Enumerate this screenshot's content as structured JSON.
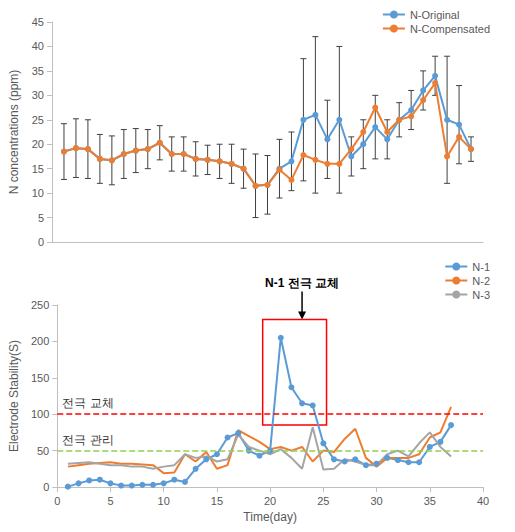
{
  "chart_data": [
    {
      "type": "line",
      "ylabel": "N concentrations (ppm)",
      "x": [
        1,
        2,
        3,
        4,
        5,
        6,
        7,
        8,
        9,
        10,
        11,
        12,
        13,
        14,
        15,
        16,
        17,
        18,
        19,
        20,
        21,
        22,
        23,
        24,
        25,
        26,
        27,
        28,
        29,
        30,
        31,
        32,
        33,
        34,
        35
      ],
      "series": [
        {
          "name": "N-Original",
          "color": "#5b9bd5",
          "marker": "circle",
          "values": [
            18.5,
            19.2,
            19.0,
            17.0,
            16.7,
            18.0,
            18.7,
            19.0,
            20.3,
            18.0,
            18.0,
            17.0,
            16.8,
            16.5,
            16.0,
            15.0,
            11.5,
            11.7,
            15.0,
            16.5,
            25.0,
            26.0,
            21.0,
            25.0,
            17.5,
            20.0,
            23.5,
            21.0,
            25.0,
            27.0,
            31.0,
            34.0,
            25.0,
            24.0,
            19.0
          ],
          "errors": [
            5.7,
            6.0,
            6.0,
            5.0,
            5.0,
            5.0,
            4.5,
            4.0,
            3.5,
            3.5,
            3.5,
            3.5,
            3.0,
            3.5,
            4.0,
            4.0,
            6.5,
            6.0,
            6.0,
            6.0,
            12.5,
            16.0,
            8.0,
            15.0,
            4.0,
            5.0,
            6.5,
            4.0,
            3.5,
            4.0,
            4.0,
            4.0,
            13.0,
            8.0,
            2.5
          ]
        },
        {
          "name": "N-Compensated",
          "color": "#ed7d31",
          "marker": "circle",
          "values": [
            18.5,
            19.2,
            19.0,
            17.0,
            16.7,
            18.0,
            18.7,
            19.0,
            20.3,
            18.0,
            18.0,
            17.0,
            16.8,
            16.5,
            16.0,
            15.0,
            11.5,
            11.7,
            14.8,
            12.7,
            17.8,
            16.8,
            16.0,
            16.0,
            19.0,
            22.5,
            27.5,
            22.5,
            25.0,
            25.7,
            29.0,
            32.5,
            17.5,
            21.5,
            19.0
          ]
        }
      ],
      "xlim": [
        0,
        36
      ],
      "ylim": [
        0,
        45
      ],
      "yticks": [
        0,
        5,
        10,
        15,
        20,
        25,
        30,
        35,
        40,
        45
      ],
      "grid": false,
      "legend": "upper right",
      "tick_labels": "y"
    },
    {
      "type": "line",
      "xlabel": "Time(day)",
      "ylabel": "Electrode Stability(S)",
      "x": [
        1,
        2,
        3,
        4,
        5,
        6,
        7,
        8,
        9,
        10,
        11,
        12,
        13,
        14,
        15,
        16,
        17,
        18,
        19,
        20,
        21,
        22,
        23,
        24,
        25,
        26,
        27,
        28,
        29,
        30,
        31,
        32,
        33,
        34,
        35,
        36,
        37
      ],
      "series": [
        {
          "name": "N-1",
          "color": "#5b9bd5",
          "marker": "circle",
          "values": [
            0.5,
            5,
            9,
            10,
            5,
            2,
            2,
            3,
            3,
            5,
            10,
            7,
            25,
            38,
            45,
            68,
            74,
            50,
            43,
            50,
            205,
            137,
            115,
            112,
            60,
            38,
            35,
            38,
            30,
            32,
            40,
            37,
            34,
            34,
            55,
            62,
            85
          ]
        },
        {
          "name": "N-2",
          "color": "#ed7d31",
          "marker": "none",
          "values": [
            28,
            30,
            32,
            33,
            34,
            32,
            32,
            31,
            30,
            19,
            20,
            45,
            35,
            48,
            25,
            30,
            78,
            70,
            62,
            52,
            55,
            50,
            55,
            35,
            50,
            48,
            66,
            80,
            40,
            28,
            40,
            40,
            40,
            45,
            68,
            75,
            110
          ]
        },
        {
          "name": "N-3",
          "color": "#a5a5a5",
          "marker": "none",
          "values": [
            32,
            33,
            34,
            32,
            30,
            30,
            28,
            28,
            25,
            28,
            30,
            45,
            40,
            42,
            35,
            38,
            72,
            55,
            50,
            45,
            52,
            40,
            25,
            82,
            24,
            25,
            38,
            35,
            30,
            30,
            45,
            50,
            42,
            60,
            75,
            55,
            42
          ]
        }
      ],
      "xlim": [
        0,
        40
      ],
      "xticks": [
        0,
        5,
        10,
        15,
        20,
        25,
        30,
        35,
        40
      ],
      "ylim": [
        0,
        250
      ],
      "yticks": [
        0,
        50,
        100,
        150,
        200,
        250
      ],
      "grid": false,
      "legend": "upper right",
      "reference_lines": [
        {
          "value": 100,
          "label": "전극 교체",
          "color": "#ff0000",
          "line_style": "dashed"
        },
        {
          "value": 50,
          "label": "전극 관리",
          "color": "#92d050",
          "line_style": "dashed"
        }
      ],
      "highlight_box": {
        "x": [
          19.3,
          25.3
        ],
        "y": [
          85,
          230
        ],
        "color": "#ff0000"
      },
      "annotations": [
        {
          "text": "N-1 전극 교체",
          "x": 23,
          "y": 230
        }
      ]
    }
  ]
}
